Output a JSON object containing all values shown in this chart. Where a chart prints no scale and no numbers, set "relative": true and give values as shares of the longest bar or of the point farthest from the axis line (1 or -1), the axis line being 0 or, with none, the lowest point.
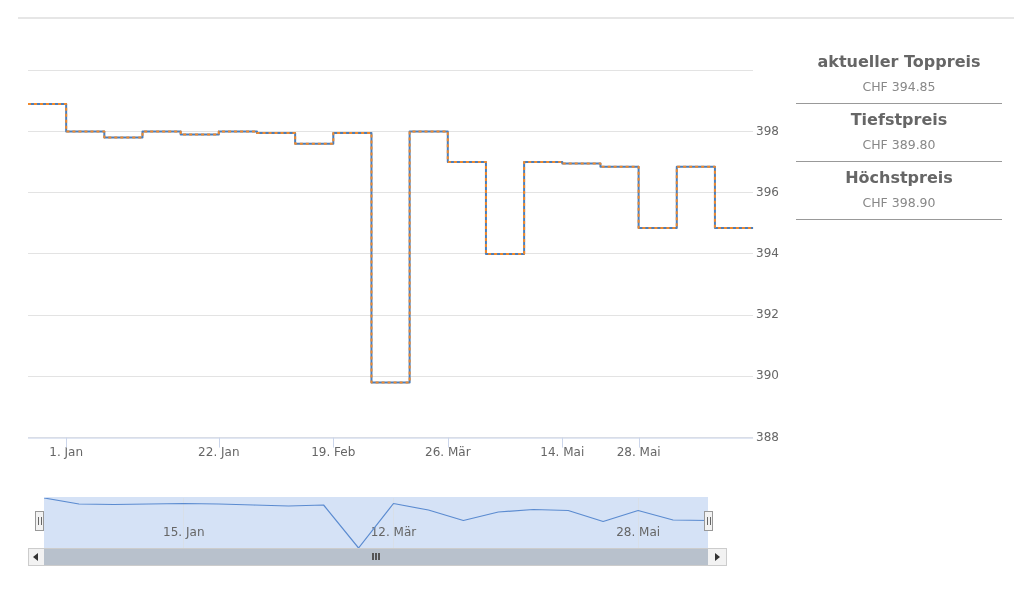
{
  "chart_data": [
    {
      "type": "step",
      "categories": [
        null,
        "1. Jan",
        null,
        null,
        null,
        "22. Jan",
        null,
        null,
        "19. Feb",
        null,
        null,
        "26. Mär",
        null,
        null,
        "14. Mai",
        null,
        "28. Mai",
        null,
        null,
        null
      ],
      "series": [
        {
          "color": "#4a7ebb",
          "values": [
            398.9,
            398.0,
            397.8,
            398.0,
            397.9,
            398.0,
            397.95,
            397.6,
            397.95,
            389.8,
            398.0,
            397.0,
            394.0,
            397.0,
            396.95,
            396.85,
            394.85,
            396.85,
            394.85,
            394.85
          ]
        },
        {
          "color": "#f0892c",
          "line_style": "dotted",
          "values": [
            398.9,
            398.0,
            397.8,
            398.0,
            397.9,
            398.0,
            397.95,
            397.6,
            397.95,
            389.8,
            398.0,
            397.0,
            394.0,
            397.0,
            396.95,
            396.85,
            394.85,
            396.85,
            394.85,
            394.85
          ]
        }
      ],
      "ylim": [
        388,
        400
      ],
      "yticks": [
        388,
        390,
        392,
        394,
        396,
        398,
        {
          "value": 400,
          "label": null
        }
      ],
      "grid": "y",
      "legend": false,
      "marker": "none"
    },
    {
      "type": "line",
      "relative": true,
      "categories": [
        null,
        null,
        null,
        null,
        "15. Jan",
        null,
        null,
        null,
        null,
        null,
        "12. Mär",
        null,
        null,
        null,
        null,
        null,
        null,
        "28. Mai",
        null,
        null
      ],
      "series": [
        {
          "color": "#5b8bd0",
          "values": [
            1.0,
            0.88,
            0.87,
            0.88,
            0.89,
            0.88,
            0.86,
            0.84,
            0.86,
            0.0,
            0.89,
            0.76,
            0.55,
            0.72,
            0.77,
            0.75,
            0.53,
            0.75,
            0.56,
            0.55
          ]
        }
      ],
      "grid": "x",
      "legend": false,
      "marker": "none"
    },
    {
      "type": "other",
      "annotations": [
        "aktueller Toppreis",
        "CHF 394.85",
        "Tiefstpreis",
        "CHF 389.80",
        "Höchstpreis",
        "CHF 398.90"
      ]
    }
  ]
}
